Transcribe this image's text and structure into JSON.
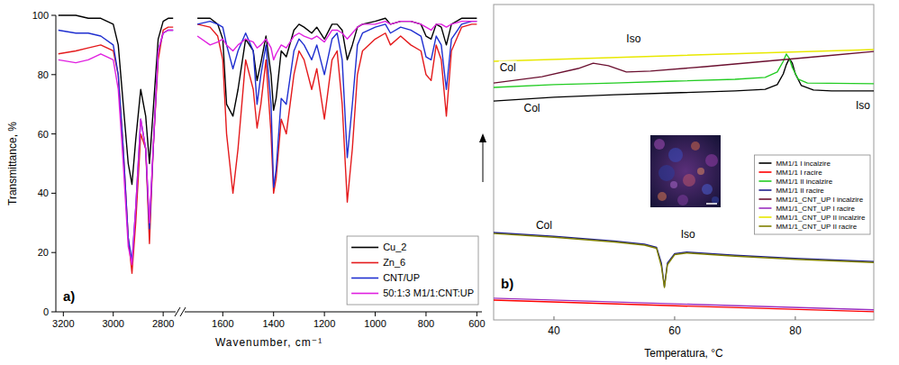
{
  "chart_data": [
    {
      "type": "line",
      "title": "a)",
      "y_label": "Transmittance, %",
      "x": [
        3220,
        3150,
        3100,
        3050,
        3000,
        2980,
        2960,
        2940,
        2925,
        2910,
        2890,
        2870,
        2855,
        2840,
        2820,
        2800,
        2780,
        2760
      ],
      "xlim": [
        3230,
        2750
      ],
      "xticks": [
        3200,
        3000,
        2800
      ],
      "ylim": [
        0,
        100
      ],
      "yticks": [
        0,
        20,
        40,
        60,
        80,
        100
      ],
      "series": [
        {
          "color": "#000000",
          "values": [
            100,
            100,
            99,
            99,
            97,
            90,
            70,
            50,
            43,
            58,
            75,
            66,
            50,
            68,
            92,
            98,
            99,
            99
          ]
        },
        {
          "color": "#e41a1c",
          "values": [
            87,
            88,
            89,
            90,
            88,
            80,
            55,
            25,
            13,
            30,
            60,
            55,
            23,
            55,
            85,
            95,
            96,
            96
          ]
        },
        {
          "color": "#1f2fd0",
          "values": [
            95,
            94,
            94,
            93,
            90,
            80,
            55,
            25,
            17,
            35,
            65,
            55,
            28,
            55,
            88,
            94,
            95,
            95
          ]
        },
        {
          "color": "#e020e0",
          "values": [
            85,
            84,
            85,
            87,
            85,
            75,
            50,
            22,
            16,
            35,
            65,
            55,
            30,
            55,
            88,
            94,
            95,
            95
          ]
        }
      ]
    },
    {
      "type": "line",
      "x_label": "Wavenumber, cm⁻¹",
      "legend": "lower right",
      "x": [
        1700,
        1650,
        1620,
        1600,
        1585,
        1560,
        1540,
        1510,
        1480,
        1465,
        1450,
        1430,
        1410,
        1400,
        1390,
        1370,
        1350,
        1320,
        1300,
        1280,
        1250,
        1230,
        1200,
        1170,
        1150,
        1130,
        1110,
        1090,
        1070,
        1050,
        1000,
        960,
        940,
        900,
        860,
        820,
        800,
        780,
        760,
        740,
        720,
        700,
        660,
        620,
        600
      ],
      "xlim": [
        1750,
        580
      ],
      "xticks": [
        1600,
        1400,
        1200,
        1000,
        800,
        600
      ],
      "ylim": [
        0,
        100
      ],
      "series": [
        {
          "name": "Cu_2",
          "color": "#000000",
          "values": [
            99,
            99,
            97,
            92,
            70,
            66,
            75,
            92,
            88,
            78,
            84,
            93,
            80,
            68,
            72,
            88,
            86,
            95,
            97,
            96,
            94,
            96,
            92,
            97,
            97,
            95,
            85,
            90,
            96,
            97,
            98,
            99,
            97,
            98,
            98,
            97,
            93,
            92,
            97,
            96,
            90,
            97,
            99,
            99,
            99
          ]
        },
        {
          "name": "Zn_6",
          "color": "#e41a1c",
          "values": [
            97,
            96,
            93,
            85,
            60,
            40,
            55,
            85,
            75,
            62,
            70,
            85,
            60,
            40,
            45,
            65,
            60,
            80,
            88,
            85,
            75,
            82,
            65,
            85,
            88,
            70,
            37,
            55,
            80,
            88,
            92,
            94,
            90,
            93,
            90,
            88,
            80,
            78,
            90,
            85,
            66,
            88,
            96,
            97,
            97
          ]
        },
        {
          "name": "CNT/UP",
          "color": "#1f2fd0",
          "values": [
            97,
            98,
            97,
            96,
            90,
            82,
            88,
            94,
            88,
            70,
            80,
            90,
            70,
            42,
            48,
            72,
            70,
            88,
            92,
            90,
            85,
            90,
            80,
            92,
            94,
            85,
            52,
            70,
            90,
            94,
            96,
            97,
            94,
            96,
            95,
            93,
            86,
            85,
            93,
            90,
            75,
            92,
            97,
            98,
            98
          ]
        },
        {
          "name": "50:1:3 M1/1:CNT:UP",
          "color": "#e020e0",
          "values": [
            93,
            90,
            91,
            92,
            90,
            88,
            90,
            92,
            91,
            89,
            90,
            92,
            89,
            85,
            87,
            90,
            89,
            93,
            94,
            93,
            92,
            93,
            91,
            95,
            95,
            94,
            92,
            94,
            96,
            97,
            97,
            98,
            97,
            98,
            98,
            97,
            96,
            95,
            97,
            97,
            96,
            97,
            98,
            98,
            98
          ]
        }
      ]
    },
    {
      "type": "line",
      "title": "b)",
      "x_label": "Temperatura, °C",
      "legend": "right",
      "tick_labels": "x",
      "xlim": [
        30,
        93
      ],
      "xticks": [
        40,
        60,
        80
      ],
      "ylim": [
        0,
        100
      ],
      "annotations": [
        {
          "text": "Col",
          "x": 31,
          "y": 79
        },
        {
          "text": "Iso",
          "x": 52,
          "y": 88
        },
        {
          "text": "Col",
          "x": 35,
          "y": 66
        },
        {
          "text": "Iso",
          "x": 90,
          "y": 67
        },
        {
          "text": "Col",
          "x": 37,
          "y": 29
        },
        {
          "text": "Iso",
          "x": 61,
          "y": 26
        }
      ],
      "series": [
        {
          "name": "MM1/1 I incalzire",
          "color": "#000000",
          "x": [
            30,
            40,
            50,
            60,
            70,
            75,
            77,
            78,
            78.5,
            79,
            79.5,
            80,
            81,
            83,
            86,
            93
          ],
          "values": [
            69.4,
            70.6,
            71.4,
            72,
            72.6,
            73.1,
            74.6,
            78,
            80.9,
            82.9,
            81.4,
            78,
            74.3,
            72.9,
            72.6,
            72.6
          ]
        },
        {
          "name": "MM1/1 I racire",
          "color": "#ff0000",
          "x": [
            30,
            60,
            93
          ],
          "values": [
            6.3,
            4.5,
            2.6
          ]
        },
        {
          "name": "MM1/1 II incalzire",
          "color": "#22cc22",
          "x": [
            30,
            40,
            50,
            60,
            70,
            75,
            77,
            78,
            78.5,
            79,
            79.5,
            80.5,
            82,
            93
          ],
          "values": [
            73.7,
            74.6,
            75.1,
            75.7,
            76.3,
            76.9,
            78.6,
            82,
            84.3,
            82.9,
            80,
            76.3,
            75.1,
            74.9
          ]
        },
        {
          "name": "MM1/1 II racire",
          "color": "#20208c",
          "x": [
            30,
            40,
            50,
            55,
            57,
            57.8,
            58.3,
            58.8,
            60,
            62,
            70,
            80,
            93
          ],
          "values": [
            27.7,
            26.5,
            25,
            24,
            23,
            18,
            10.6,
            18,
            21,
            21.5,
            20.5,
            19.5,
            18.5
          ]
        },
        {
          "name": "MM1/1_CNT_UP I incalzire",
          "color": "#6b1030",
          "x": [
            30,
            38,
            44,
            46.5,
            49,
            52,
            56,
            65,
            75,
            85,
            93
          ],
          "values": [
            75.1,
            77.1,
            79.7,
            81.4,
            80.6,
            78.6,
            78.9,
            80.3,
            82,
            83.7,
            85.1
          ]
        },
        {
          "name": "MM1/1_CNT_UP I racire",
          "color": "#9b30c0",
          "x": [
            30,
            60,
            93
          ],
          "values": [
            6.9,
            5.1,
            3.2
          ]
        },
        {
          "name": "MM1/1_CNT_UP II incalzire",
          "color": "#e8e800",
          "x": [
            30,
            60,
            93
          ],
          "values": [
            82,
            83.8,
            85.7
          ]
        },
        {
          "name": "MM1/1_CNT_UP II racire",
          "color": "#808000",
          "x": [
            30,
            40,
            50,
            55,
            57,
            57.8,
            58.3,
            58.8,
            60,
            62,
            70,
            80,
            93
          ],
          "values": [
            27.4,
            26.2,
            24.7,
            23.7,
            22.7,
            17,
            10.3,
            17.5,
            20.7,
            21.2,
            20.2,
            19.2,
            18.2
          ]
        }
      ]
    }
  ]
}
